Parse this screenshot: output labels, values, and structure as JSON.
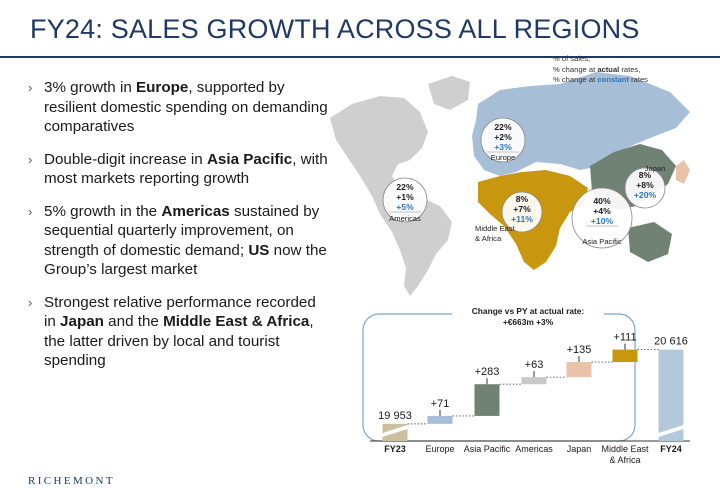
{
  "title": "FY24: SALES GROWTH ACROSS ALL REGIONS",
  "bullets": [
    {
      "parts": [
        {
          "t": "3% growth in ",
          "b": false
        },
        {
          "t": "Europe",
          "b": true
        },
        {
          "t": ", supported by resilient domestic spending on demanding comparatives",
          "b": false
        }
      ]
    },
    {
      "parts": [
        {
          "t": "Double-digit increase in ",
          "b": false
        },
        {
          "t": "Asia Pacific",
          "b": true
        },
        {
          "t": ", with most markets reporting growth",
          "b": false
        }
      ]
    },
    {
      "parts": [
        {
          "t": "5% growth in the ",
          "b": false
        },
        {
          "t": "Americas",
          "b": true
        },
        {
          "t": " sustained by sequential quarterly improvement, on strength of domestic demand; ",
          "b": false
        },
        {
          "t": "US",
          "b": true
        },
        {
          "t": " now the Group’s largest market",
          "b": false
        }
      ]
    },
    {
      "parts": [
        {
          "t": "Strongest relative performance recorded in ",
          "b": false
        },
        {
          "t": "Japan",
          "b": true
        },
        {
          "t": " and the ",
          "b": false
        },
        {
          "t": "Middle East & Africa",
          "b": true
        },
        {
          "t": ", the latter driven by local and tourist spending",
          "b": false
        }
      ]
    }
  ],
  "bullet_marker": "›",
  "map_legend": {
    "line1": "% of sales,",
    "line2_pre": "% change at ",
    "line2_bold": "actual",
    "line2_post": " rates,",
    "line3_pre": "% change at ",
    "line3_bold": "constant",
    "line3_post": " rates"
  },
  "regions": [
    {
      "name": "Europe",
      "share": "22%",
      "actual": "+2%",
      "constant": "+3%",
      "color": "#a7bfd6"
    },
    {
      "name": "Americas",
      "share": "22%",
      "actual": "+1%",
      "constant": "+5%",
      "color": "#c9c9c9"
    },
    {
      "name": "Middle East & Africa",
      "share": "8%",
      "actual": "+7%",
      "constant": "+11%",
      "color": "#c9970f"
    },
    {
      "name": "Asia Pacific",
      "share": "40%",
      "actual": "+4%",
      "constant": "+10%",
      "color": "#6f8273"
    },
    {
      "name": "Japan",
      "share": "8%",
      "actual": "+8%",
      "constant": "+20%",
      "color": "#e8c3aa"
    }
  ],
  "colors": {
    "title": "#1f3864",
    "constant_rate": "#2e74b5",
    "box_border": "#7ea6c8",
    "dotted": "#555555"
  },
  "chart_data": {
    "type": "bar",
    "subtype": "waterfall",
    "title": "Change vs PY at actual rate:",
    "subtitle": "+€663m +3%",
    "unit": "€m",
    "categories": [
      "FY23",
      "Europe",
      "Asia Pacific",
      "Americas",
      "Japan",
      "Middle East & Africa",
      "FY24"
    ],
    "start": {
      "label": "FY23",
      "value": 19953,
      "value_label": "19 953",
      "color": "#cbbf9e"
    },
    "end": {
      "label": "FY24",
      "value": 20616,
      "value_label": "20 616",
      "color": "#b3c8d9"
    },
    "steps": [
      {
        "label": "Europe",
        "value": 71,
        "value_label": "+71",
        "color": "#a7bfd6"
      },
      {
        "label": "Asia Pacific",
        "value": 283,
        "value_label": "+283",
        "color": "#6f8273"
      },
      {
        "label": "Americas",
        "value": 63,
        "value_label": "+63",
        "color": "#c9c9c9"
      },
      {
        "label": "Japan",
        "value": 135,
        "value_label": "+135",
        "color": "#e8c3aa"
      },
      {
        "label": "Middle East & Africa",
        "value": 111,
        "value_label": "+111",
        "color": "#c9970f"
      }
    ]
  },
  "logo": "RICHEMONT"
}
